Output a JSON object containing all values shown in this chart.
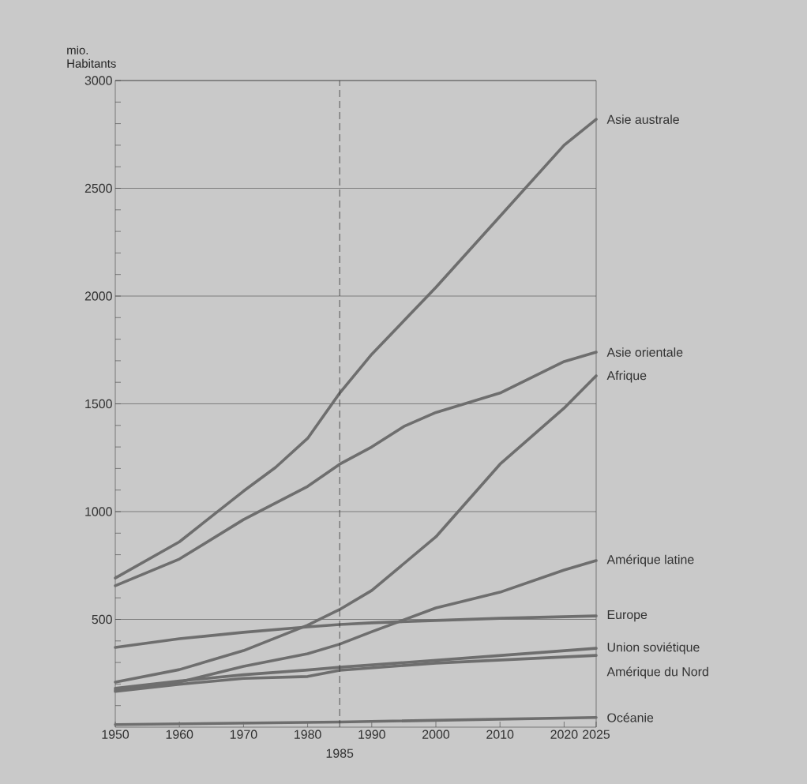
{
  "chart_data": {
    "type": "line",
    "ylabel": "mio. Habitants",
    "xlim": [
      1950,
      2025
    ],
    "ylim": [
      0,
      3000
    ],
    "xticks": [
      1950,
      1960,
      1970,
      1980,
      1990,
      2000,
      2010,
      2020,
      2025
    ],
    "yticks": [
      {
        "value": 100,
        "label": null
      },
      {
        "value": 200,
        "label": null
      },
      {
        "value": 300,
        "label": null
      },
      {
        "value": 400,
        "label": null
      },
      500,
      {
        "value": 600,
        "label": null
      },
      {
        "value": 700,
        "label": null
      },
      {
        "value": 800,
        "label": null
      },
      {
        "value": 900,
        "label": null
      },
      1000,
      {
        "value": 1100,
        "label": null
      },
      {
        "value": 1200,
        "label": null
      },
      {
        "value": 1300,
        "label": null
      },
      {
        "value": 1400,
        "label": null
      },
      1500,
      {
        "value": 1600,
        "label": null
      },
      {
        "value": 1700,
        "label": null
      },
      {
        "value": 1800,
        "label": null
      },
      {
        "value": 1900,
        "label": null
      },
      2000,
      {
        "value": 2100,
        "label": null
      },
      {
        "value": 2200,
        "label": null
      },
      {
        "value": 2300,
        "label": null
      },
      {
        "value": 2400,
        "label": null
      },
      2500,
      {
        "value": 2600,
        "label": null
      },
      {
        "value": 2700,
        "label": null
      },
      {
        "value": 2800,
        "label": null
      },
      {
        "value": 2900,
        "label": null
      },
      3000
    ],
    "grid": "y",
    "ref_lines": [
      {
        "axis": "x",
        "value": 1985,
        "label": "1985",
        "line_style": "dashed"
      }
    ],
    "series": [
      {
        "name": "Asie australe",
        "color": "#6e6e6e",
        "x": [
          1950,
          1960,
          1970,
          1975,
          1980,
          1985,
          1990,
          2000,
          2010,
          2020,
          2025
        ],
        "values": [
          692,
          860,
          1095,
          1205,
          1340,
          1550,
          1730,
          2040,
          2370,
          2700,
          2820
        ]
      },
      {
        "name": "Asie orientale",
        "color": "#6e6e6e",
        "x": [
          1950,
          1960,
          1970,
          1980,
          1985,
          1990,
          1995,
          2000,
          2010,
          2020,
          2025
        ],
        "values": [
          656,
          780,
          963,
          1117,
          1220,
          1300,
          1395,
          1460,
          1550,
          1696,
          1740
        ]
      },
      {
        "name": "Afrique",
        "color": "#6e6e6e",
        "x": [
          1950,
          1960,
          1970,
          1980,
          1985,
          1990,
          2000,
          2010,
          2020,
          2025
        ],
        "values": [
          209,
          267,
          355,
          473,
          546,
          634,
          883,
          1220,
          1480,
          1630
        ]
      },
      {
        "name": "Amérique latine",
        "color": "#6e6e6e",
        "x": [
          1950,
          1960,
          1970,
          1980,
          1985,
          1990,
          2000,
          2010,
          2020,
          2025
        ],
        "values": [
          172,
          209,
          282,
          341,
          385,
          443,
          553,
          626,
          729,
          773
        ]
      },
      {
        "name": "Europe",
        "color": "#6e6e6e",
        "x": [
          1950,
          1960,
          1970,
          1980,
          1985,
          1990,
          2000,
          2010,
          2025
        ],
        "values": [
          370,
          410,
          440,
          465,
          476,
          484,
          495,
          505,
          516
        ]
      },
      {
        "name": "Union soviétique",
        "color": "#6e6e6e",
        "x": [
          1950,
          1960,
          1970,
          1980,
          1985,
          2000,
          2025
        ],
        "values": [
          180,
          214,
          243,
          265,
          278,
          310,
          366
        ]
      },
      {
        "name": "Amérique du Nord",
        "color": "#6e6e6e",
        "x": [
          1950,
          1960,
          1970,
          1980,
          1985,
          2000,
          2025
        ],
        "values": [
          166,
          199,
          226,
          235,
          264,
          297,
          333
        ]
      },
      {
        "name": "Océanie",
        "color": "#6e6e6e",
        "x": [
          1950,
          1985,
          2025
        ],
        "values": [
          12,
          24,
          45
        ]
      }
    ]
  }
}
